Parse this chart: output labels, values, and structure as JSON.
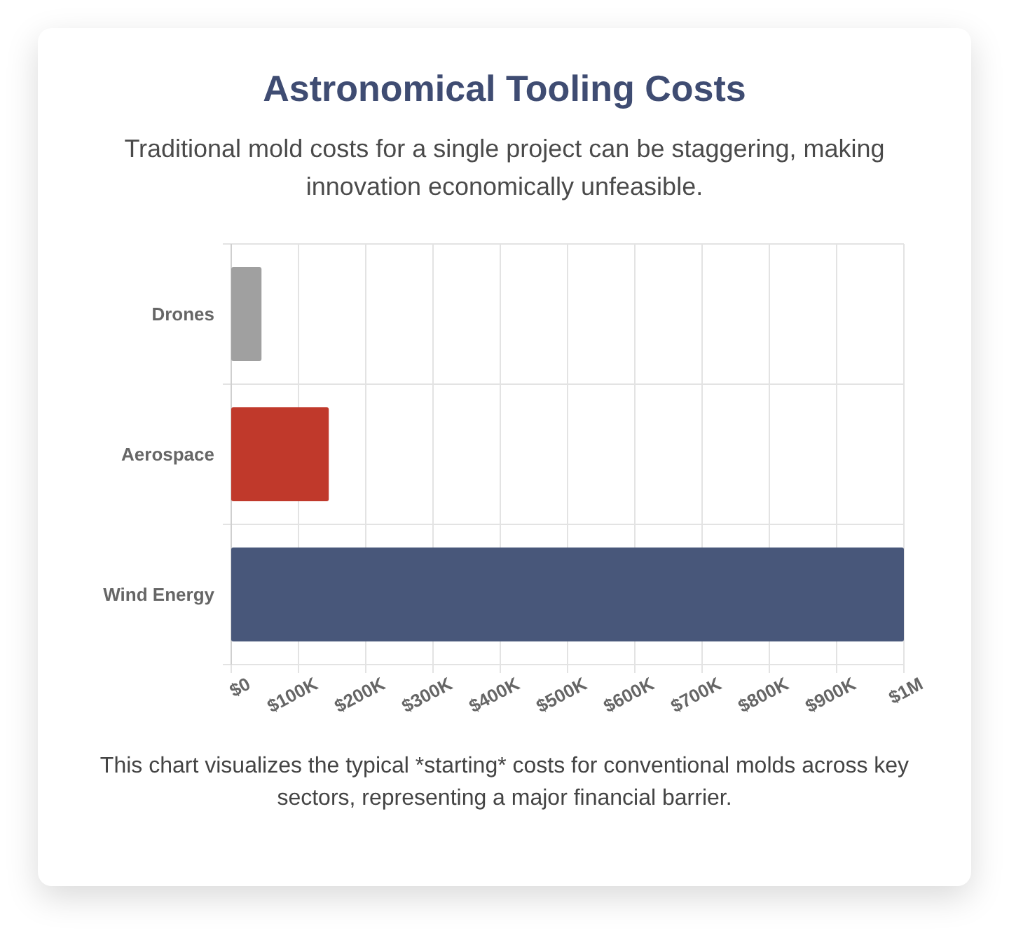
{
  "chart_data": {
    "type": "bar",
    "orientation": "horizontal",
    "title": "Astronomical Tooling Costs",
    "subtitle": "Traditional mold costs for a single project can be staggering, making innovation economically unfeasible.",
    "categories": [
      "Drones",
      "Aerospace",
      "Wind Energy"
    ],
    "values": [
      45000,
      145000,
      1000000
    ],
    "colors": [
      "#a0a0a0",
      "#c0392b",
      "#48577a"
    ],
    "xlim": [
      0,
      1000000
    ],
    "xticks": [
      {
        "value": 0,
        "label": "$0"
      },
      {
        "value": 100000,
        "label": "$100K"
      },
      {
        "value": 200000,
        "label": "$200K"
      },
      {
        "value": 300000,
        "label": "$300K"
      },
      {
        "value": 400000,
        "label": "$400K"
      },
      {
        "value": 500000,
        "label": "$500K"
      },
      {
        "value": 600000,
        "label": "$600K"
      },
      {
        "value": 700000,
        "label": "$700K"
      },
      {
        "value": 800000,
        "label": "$800K"
      },
      {
        "value": 900000,
        "label": "$900K"
      },
      {
        "value": 1000000,
        "label": "$1M"
      }
    ],
    "grid": true,
    "annotations": [
      "This chart visualizes the typical *starting* costs for conventional molds across key sectors, representing a major financial barrier."
    ]
  }
}
